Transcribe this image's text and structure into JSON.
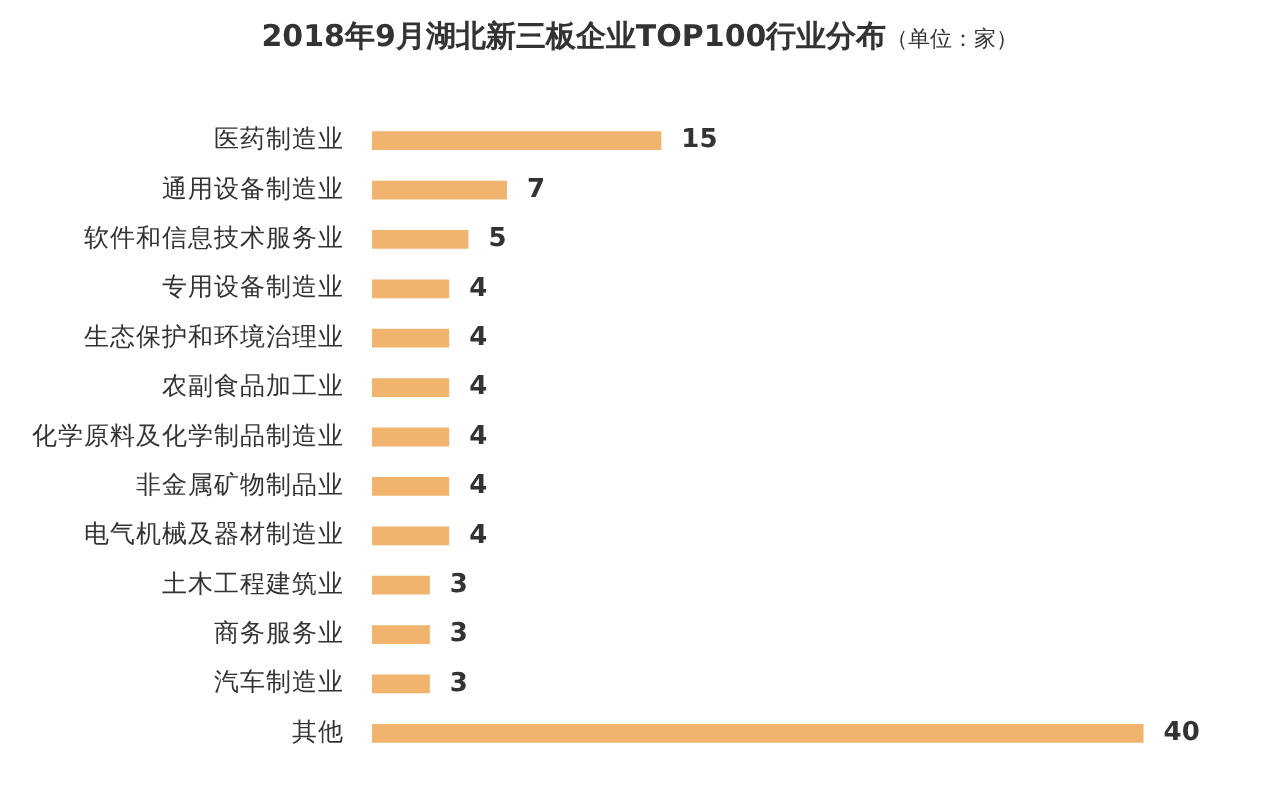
{
  "chart_data": {
    "type": "bar",
    "orientation": "horizontal",
    "title": "2018年9月湖北新三板企业TOP100行业分布",
    "subtitle": "（单位：家）",
    "categories": [
      "医药制造业",
      "通用设备制造业",
      "软件和信息技术服务业",
      "专用设备制造业",
      "生态保护和环境治理业",
      "农副食品加工业",
      "化学原料及化学制品制造业",
      "非金属矿物制品业",
      "电气机械及器材制造业",
      "土木工程建筑业",
      "商务服务业",
      "汽车制造业",
      "其他"
    ],
    "values": [
      15,
      7,
      5,
      4,
      4,
      4,
      4,
      4,
      4,
      3,
      3,
      3,
      40
    ],
    "color": "#f0b46e",
    "data_labels": true
  }
}
